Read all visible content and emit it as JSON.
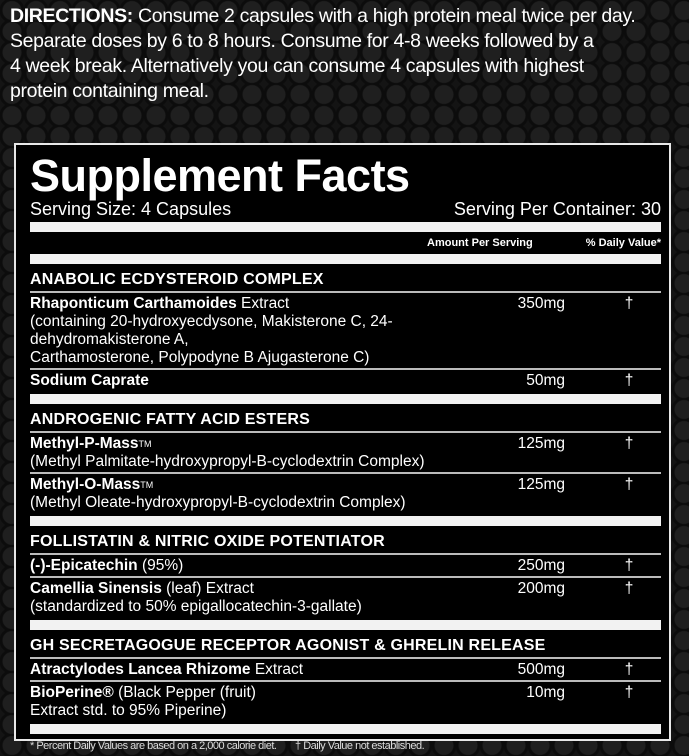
{
  "directions": {
    "label": "DIRECTIONS:",
    "lines": [
      " Consume 2 capsules with a high protein meal twice per day.",
      "Separate doses by 6 to 8 hours. Consume for 4-8 weeks followed by a",
      "4 week break. Alternatively you can consume 4 capsules with highest",
      "protein containing meal."
    ]
  },
  "facts": {
    "title": "Supplement Facts",
    "serving_size": "Serving Size: 4 Capsules",
    "servings_per_container": "Serving Per Container: 30",
    "amount_header": "Amount Per Serving",
    "dv_header": "% Daily Value*",
    "sections": [
      {
        "title": "ANABOLIC ECDYSTEROID COMPLEX",
        "items": [
          {
            "bold": "Rhaponticum Carthamoides",
            "rest": " Extract",
            "sub": [
              "(containing 20-hydroxyecdysone, Makisterone C, 24-dehydromakisterone A,",
              "Carthamosterone, Polypodyne B Ajugasterone C)"
            ],
            "amount": "350mg",
            "dv": "†"
          },
          {
            "bold": "Sodium Caprate",
            "rest": "",
            "sub": [],
            "amount": "50mg",
            "dv": "†"
          }
        ]
      },
      {
        "title": "ANDROGENIC FATTY ACID ESTERS",
        "items": [
          {
            "bold": "Methyl-P-Mass",
            "tm": "TM",
            "rest": "",
            "sub": [
              "(Methyl Palmitate-hydroxypropyl-B-cyclodextrin Complex)"
            ],
            "amount": "125mg",
            "dv": "†"
          },
          {
            "bold": "Methyl-O-Mass",
            "tm": "TM",
            "rest": "",
            "sub": [
              "(Methyl Oleate-hydroxypropyl-B-cyclodextrin Complex)"
            ],
            "amount": "125mg",
            "dv": "†"
          }
        ]
      },
      {
        "title": "FOLLISTATIN & NITRIC OXIDE POTENTIATOR",
        "items": [
          {
            "bold": "(-)-Epicatechin",
            "rest": " (95%)",
            "sub": [],
            "amount": "250mg",
            "dv": "†"
          },
          {
            "bold": "Camellia Sinensis",
            "rest": " (leaf) Extract",
            "sub": [
              "(standardized to 50% epigallocatechin-3-gallate)"
            ],
            "amount": "200mg",
            "dv": "†"
          }
        ]
      },
      {
        "title": "GH SECRETAGOGUE RECEPTOR AGONIST & GHRELIN RELEASE",
        "items": [
          {
            "bold": "Atractylodes Lancea Rhizome",
            "rest": " Extract",
            "sub": [],
            "amount": "500mg",
            "dv": "†"
          },
          {
            "bold": "BioPerine®",
            "rest": " (Black Pepper (fruit)",
            "sub": [
              "Extract std. to 95% Piperine)"
            ],
            "amount": "10mg",
            "dv": "†"
          }
        ]
      }
    ],
    "footnote_1": "* Percent Daily Values are based on a 2,000 calorie diet.",
    "footnote_2": "† Daily Value not established."
  }
}
